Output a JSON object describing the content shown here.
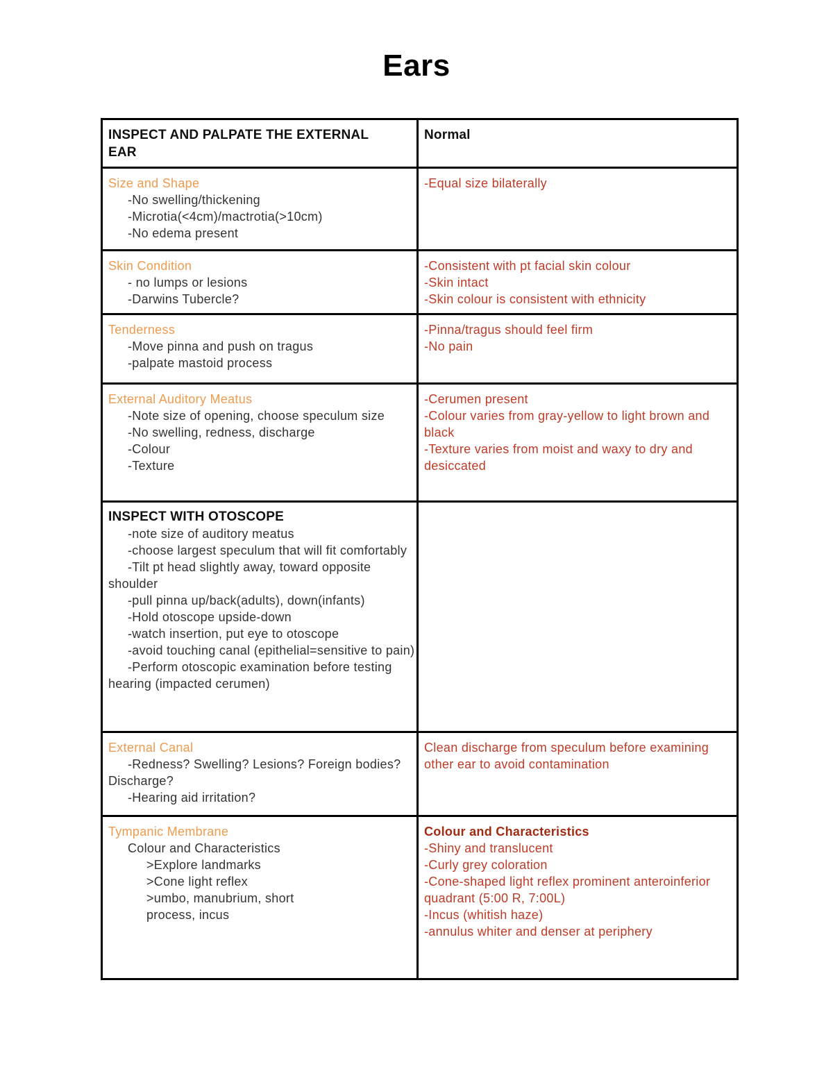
{
  "page": {
    "title": "Ears"
  },
  "colors": {
    "heading_orange": "#EF9B4F",
    "body_red": "#BE3B27",
    "bold_dark_red": "#A32B12",
    "border_black": "#000000"
  },
  "table": {
    "header": {
      "left": "INSPECT AND PALPATE THE EXTERNAL EAR",
      "right": "Normal"
    },
    "rows": [
      {
        "left": {
          "title": "Size and Shape",
          "title_variant": "orange",
          "item_style": "dark",
          "items": [
            {
              "text": "-No swelling/thickening",
              "lvl": 1
            },
            {
              "text": "-Microtia(<4cm)/mactrotia(>10cm)",
              "lvl": 1
            },
            {
              "text": "-No edema present",
              "lvl": 1
            }
          ]
        },
        "right": {
          "item_style": "red",
          "items": [
            {
              "text": "-Equal size bilaterally",
              "lvl": 0
            }
          ]
        }
      },
      {
        "left": {
          "title": "Skin Condition",
          "title_variant": "orange",
          "item_style": "dark",
          "items": [
            {
              "text": "- no lumps or lesions",
              "lvl": 1
            },
            {
              "text": "-Darwins Tubercle?",
              "lvl": 1
            }
          ]
        },
        "right": {
          "item_style": "red",
          "items": [
            {
              "text": "-Consistent with pt facial skin colour",
              "lvl": 0
            },
            {
              "text": "-Skin intact",
              "lvl": 0
            },
            {
              "text": "-Skin colour is consistent with ethnicity",
              "lvl": 0
            }
          ]
        }
      },
      {
        "left": {
          "title": "Tenderness",
          "title_variant": "orange",
          "item_style": "dark",
          "items": [
            {
              "text": "-Move pinna and push on tragus",
              "lvl": 1
            },
            {
              "text": "-palpate mastoid process",
              "lvl": 1
            }
          ]
        },
        "right": {
          "item_style": "red",
          "items": [
            {
              "text": "-Pinna/tragus should feel firm",
              "lvl": 0
            },
            {
              "text": "-No pain",
              "lvl": 0
            }
          ]
        }
      },
      {
        "left": {
          "title": "External Auditory Meatus",
          "title_variant": "orange",
          "item_style": "dark",
          "items": [
            {
              "text": "-Note size of opening, choose speculum size",
              "lvl": 1
            },
            {
              "text": "-No swelling, redness, discharge",
              "lvl": 1
            },
            {
              "text": "-Colour",
              "lvl": 1
            },
            {
              "text": "-Texture",
              "lvl": 1
            }
          ]
        },
        "right": {
          "item_style": "red",
          "items": [
            {
              "text": "-Cerumen present",
              "lvl": 0
            },
            {
              "text": "-Colour varies from gray-yellow to light brown and black",
              "lvl": 0
            },
            {
              "text": "-Texture varies from moist and waxy to dry and desiccated",
              "lvl": 0
            }
          ]
        }
      },
      {
        "left": {
          "title": "INSPECT WITH OTOSCOPE",
          "title_variant": "strong",
          "item_style": "dark",
          "items": [
            {
              "text": "-note size of auditory meatus",
              "lvl": 1
            },
            {
              "text": "-choose largest speculum that will fit comfortably",
              "lvl": 1
            },
            {
              "text": "-Tilt pt head slightly away, toward opposite shoulder",
              "lvl": 1
            },
            {
              "text": "-pull pinna up/back(adults), down(infants)",
              "lvl": 1
            },
            {
              "text": "-Hold otoscope upside-down",
              "lvl": 1
            },
            {
              "text": "-watch insertion, put eye to otoscope",
              "lvl": 1
            },
            {
              "text": "-avoid touching canal (epithelial=sensitive to pain)",
              "lvl": 1
            },
            {
              "text": "-Perform otoscopic examination before testing hearing (impacted cerumen)",
              "lvl": 1
            }
          ]
        },
        "right": {
          "item_style": "red",
          "items": []
        }
      },
      {
        "left": {
          "title": "External Canal",
          "title_variant": "orange",
          "item_style": "dark",
          "items": [
            {
              "text": "-Redness? Swelling? Lesions? Foreign bodies? Discharge?",
              "lvl": 1
            },
            {
              "text": "-Hearing aid irritation?",
              "lvl": 1
            }
          ]
        },
        "right": {
          "item_style": "red",
          "items": [
            {
              "text": "Clean discharge from speculum before examining other ear to avoid contamination",
              "lvl": 0
            }
          ]
        }
      },
      {
        "left": {
          "title": "Tympanic Membrane",
          "title_variant": "orange",
          "item_style": "dark",
          "items": [
            {
              "text": "Colour and Characteristics",
              "lvl": 1
            },
            {
              "text": ">Explore landmarks",
              "lvl": 2
            },
            {
              "text": ">Cone light reflex",
              "lvl": 2
            },
            {
              "text": ">umbo, manubrium, short process, incus",
              "lvl": 2
            }
          ]
        },
        "right": {
          "title": "Colour and Characteristics",
          "title_variant": "strong-red",
          "item_style": "red",
          "items": [
            {
              "text": "-Shiny and translucent",
              "lvl": 0
            },
            {
              "text": "-Curly grey coloration",
              "lvl": 0
            },
            {
              "text": "-Cone-shaped light reflex prominent anteroinferior quadrant (5:00 R, 7:00L)",
              "lvl": 0
            },
            {
              "text": "-Incus (whitish haze)",
              "lvl": 0
            },
            {
              "text": "-annulus whiter and denser at periphery",
              "lvl": 0
            }
          ]
        }
      }
    ]
  }
}
